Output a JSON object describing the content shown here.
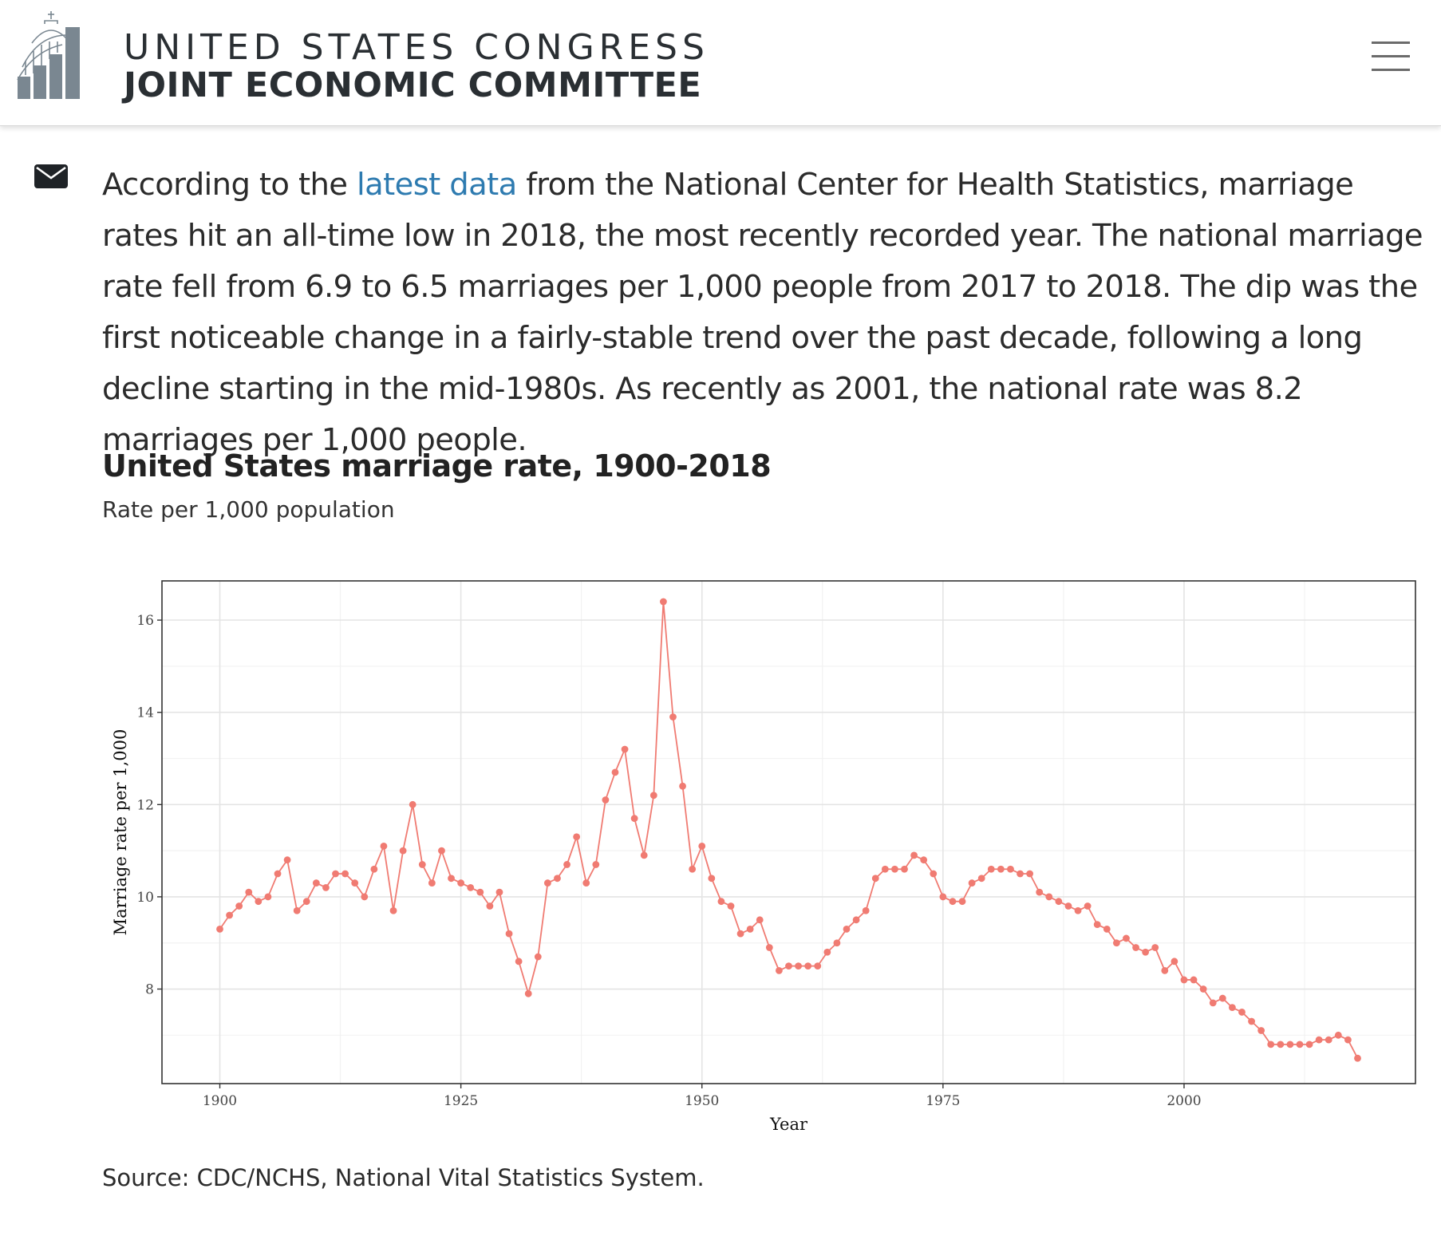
{
  "header": {
    "title_line1": "UNITED STATES CONGRESS",
    "title_line2": "JOINT ECONOMIC COMMITTEE",
    "logo_icon": "capitol-bar-chart-logo",
    "menu_icon": "hamburger-menu-icon"
  },
  "article": {
    "email_icon": "envelope-icon",
    "text_before_link": "According to the ",
    "link_text": "latest data",
    "text_after_link": " from the National Center for Health Statistics, marriage rates hit an all-time low in 2018, the most recently recorded year. The national marriage rate fell from 6.9 to 6.5 marriages per 1,000 people from 2017 to 2018. The dip was the first noticeable change in a fairly-stable trend over the past decade, following a long decline starting in the mid-1980s. As recently as 2001, the national rate was 8.2 marriages per 1,000 people.",
    "link_color": "#2e7bb0"
  },
  "chart_title": "United States marriage rate, 1900-2018",
  "chart_subtitle": "Rate per 1,000 population",
  "source": "Source: CDC/NCHS, National Vital Statistics System.",
  "chart_data": {
    "type": "line",
    "title": "United States marriage rate, 1900-2018",
    "subtitle": "Rate per 1,000 population",
    "xlabel": "Year",
    "ylabel": "Marriage rate per 1,000",
    "xlim": [
      1894,
      2024
    ],
    "ylim": [
      5.95,
      16.85
    ],
    "xticks": [
      1900,
      1925,
      1950,
      1975,
      2000
    ],
    "yticks": [
      8,
      10,
      12,
      14,
      16
    ],
    "grid": true,
    "legend": "none",
    "series_color": "#f07b72",
    "series": [
      {
        "x": [
          1900,
          1901,
          1902,
          1903,
          1904,
          1905,
          1906,
          1907,
          1908,
          1909,
          1910,
          1911,
          1912,
          1913,
          1914,
          1915,
          1916,
          1917,
          1918,
          1919,
          1920,
          1921,
          1922,
          1923,
          1924,
          1925,
          1926,
          1927,
          1928,
          1929,
          1930,
          1931,
          1932,
          1933,
          1934,
          1935,
          1936,
          1937,
          1938,
          1939,
          1940,
          1941,
          1942,
          1943,
          1944,
          1945,
          1946,
          1947,
          1948,
          1949,
          1950,
          1951,
          1952,
          1953,
          1954,
          1955,
          1956,
          1957,
          1958,
          1959,
          1960,
          1961,
          1962,
          1963,
          1964,
          1965,
          1966,
          1967,
          1968,
          1969,
          1970,
          1971,
          1972,
          1973,
          1974,
          1975,
          1976,
          1977,
          1978,
          1979,
          1980,
          1981,
          1982,
          1983,
          1984,
          1985,
          1986,
          1987,
          1988,
          1989,
          1990,
          1991,
          1992,
          1993,
          1994,
          1995,
          1996,
          1997,
          1998,
          1999,
          2000,
          2001,
          2002,
          2003,
          2004,
          2005,
          2006,
          2007,
          2008,
          2009,
          2010,
          2011,
          2012,
          2013,
          2014,
          2015,
          2016,
          2017,
          2018
        ],
        "values": [
          9.3,
          9.6,
          9.8,
          10.1,
          9.9,
          10.0,
          10.5,
          10.8,
          9.7,
          9.9,
          10.3,
          10.2,
          10.5,
          10.5,
          10.3,
          10.0,
          10.6,
          11.1,
          9.7,
          11.0,
          12.0,
          10.7,
          10.3,
          11.0,
          10.4,
          10.3,
          10.2,
          10.1,
          9.8,
          10.1,
          9.2,
          8.6,
          7.9,
          8.7,
          10.3,
          10.4,
          10.7,
          11.3,
          10.3,
          10.7,
          12.1,
          12.7,
          13.2,
          11.7,
          10.9,
          12.2,
          16.4,
          13.9,
          12.4,
          10.6,
          11.1,
          10.4,
          9.9,
          9.8,
          9.2,
          9.3,
          9.5,
          8.9,
          8.4,
          8.5,
          8.5,
          8.5,
          8.5,
          8.8,
          9.0,
          9.3,
          9.5,
          9.7,
          10.4,
          10.6,
          10.6,
          10.6,
          10.9,
          10.8,
          10.5,
          10.0,
          9.9,
          9.9,
          10.3,
          10.4,
          10.6,
          10.6,
          10.6,
          10.5,
          10.5,
          10.1,
          10.0,
          9.9,
          9.8,
          9.7,
          9.8,
          9.4,
          9.3,
          9.0,
          9.1,
          8.9,
          8.8,
          8.9,
          8.4,
          8.6,
          8.2,
          8.2,
          8.0,
          7.7,
          7.8,
          7.6,
          7.5,
          7.3,
          7.1,
          6.8,
          6.8,
          6.8,
          6.8,
          6.8,
          6.9,
          6.9,
          7.0,
          6.9,
          6.5
        ]
      }
    ]
  }
}
